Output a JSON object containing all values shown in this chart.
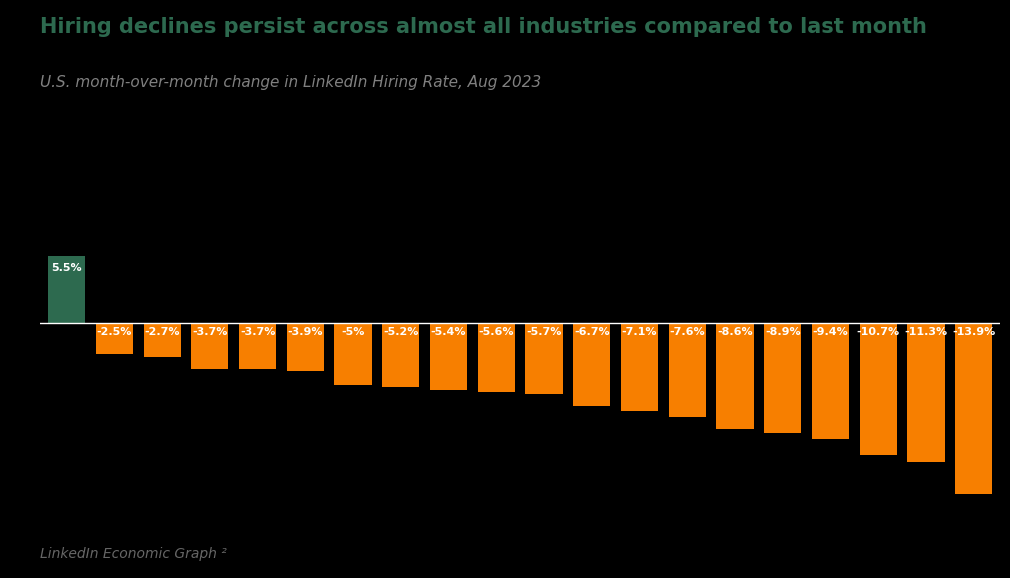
{
  "title": "Hiring declines persist across almost all industries compared to last month",
  "subtitle": "U.S. month-over-month change in LinkedIn Hiring Rate, Aug 2023",
  "footer": "LinkedIn Economic Graph ²",
  "values": [
    5.5,
    -2.5,
    -2.7,
    -3.7,
    -3.7,
    -3.9,
    -5.0,
    -5.2,
    -5.4,
    -5.6,
    -5.7,
    -6.7,
    -7.1,
    -7.6,
    -8.6,
    -8.9,
    -9.4,
    -10.7,
    -11.3,
    -13.9
  ],
  "labels": [
    "5.5%",
    "-2.5%",
    "-2.7%",
    "-3.7%",
    "-3.7%",
    "-3.9%",
    "-5%",
    "-5.2%",
    "-5.4%",
    "-5.6%",
    "-5.7%",
    "-6.7%",
    "-7.1%",
    "-7.6%",
    "-8.6%",
    "-8.9%",
    "-9.4%",
    "-10.7%",
    "-11.3%",
    "-13.9%"
  ],
  "bar_colors": [
    "#2d6a4f",
    "#f77f00",
    "#f77f00",
    "#f77f00",
    "#f77f00",
    "#f77f00",
    "#f77f00",
    "#f77f00",
    "#f77f00",
    "#f77f00",
    "#f77f00",
    "#f77f00",
    "#f77f00",
    "#f77f00",
    "#f77f00",
    "#f77f00",
    "#f77f00",
    "#f77f00",
    "#f77f00",
    "#f77f00"
  ],
  "background_color": "#000000",
  "title_color": "#2d6a4f",
  "subtitle_color": "#808080",
  "label_color": "#ffffff",
  "footer_color": "#666666",
  "ylim": [
    -16,
    7.5
  ],
  "title_fontsize": 15,
  "subtitle_fontsize": 11,
  "label_fontsize": 8,
  "footer_fontsize": 10
}
